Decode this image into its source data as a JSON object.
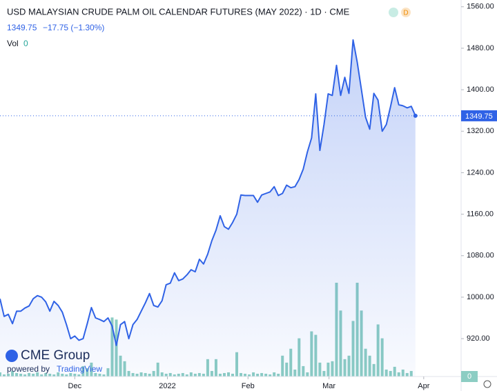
{
  "chart_data": {
    "type": "area",
    "title": "USD MALAYSIAN CRUDE PALM OIL CALENDAR FUTURES (MAY 2022) · 1D · CME",
    "change": "−17.75 (−1.30%)",
    "volume_label": "Vol",
    "badge": "D",
    "branding": {
      "logo": "CME Group",
      "powered_by": "powered by",
      "provider": "TradingView"
    },
    "color": "#2f62e6",
    "volume_color": "#8ccdc3",
    "grid": false,
    "values": [
      997,
      963,
      967,
      949,
      973,
      973,
      979,
      983,
      997,
      1003,
      1000,
      991,
      973,
      992,
      984,
      971,
      947,
      920,
      925,
      917,
      920,
      949,
      980,
      960,
      957,
      953,
      960,
      944,
      907,
      947,
      953,
      920,
      947,
      957,
      973,
      989,
      1007,
      984,
      981,
      993,
      1024,
      1027,
      1047,
      1032,
      1035,
      1043,
      1053,
      1049,
      1073,
      1064,
      1083,
      1109,
      1129,
      1157,
      1136,
      1131,
      1144,
      1160,
      1197,
      1196,
      1196,
      1196,
      1183,
      1197,
      1200,
      1203,
      1213,
      1196,
      1200,
      1216,
      1211,
      1213,
      1227,
      1247,
      1280,
      1307,
      1392,
      1283,
      1333,
      1392,
      1389,
      1447,
      1389,
      1424,
      1393,
      1496,
      1453,
      1400,
      1347,
      1324,
      1393,
      1380,
      1320,
      1333,
      1367,
      1404,
      1371,
      1369,
      1365,
      1368,
      1349.75
    ],
    "volumes": [
      6,
      3,
      4,
      8,
      5,
      4,
      3,
      5,
      4,
      6,
      3,
      5,
      4,
      3,
      6,
      4,
      3,
      5,
      4,
      3,
      15,
      12,
      20,
      5,
      4,
      3,
      12,
      85,
      82,
      30,
      22,
      8,
      5,
      4,
      6,
      5,
      4,
      8,
      20,
      6,
      4,
      5,
      3,
      4,
      5,
      3,
      6,
      4,
      5,
      4,
      25,
      8,
      25,
      4,
      5,
      6,
      4,
      35,
      5,
      4,
      3,
      6,
      4,
      5,
      4,
      3,
      6,
      4,
      30,
      20,
      40,
      10,
      55,
      15,
      6,
      65,
      60,
      20,
      8,
      20,
      22,
      135,
      95,
      25,
      30,
      80,
      135,
      95,
      40,
      30,
      18,
      75,
      55,
      10,
      8,
      14,
      6,
      10,
      5,
      8,
      0
    ],
    "xlim": [
      0,
      111
    ],
    "xticks": [
      {
        "value": 18,
        "label": "Dec"
      },
      {
        "value": 40.3,
        "label": "2022"
      },
      {
        "value": 59.7,
        "label": "Feb"
      },
      {
        "value": 79.2,
        "label": "Mar"
      },
      {
        "value": 102,
        "label": "Apr"
      }
    ],
    "ylim": [
      847,
      1573
    ],
    "yticks": [
      {
        "value": 920,
        "label": "920.00"
      },
      {
        "value": 1000,
        "label": "1000.00"
      },
      {
        "value": 1080,
        "label": "1080.00"
      },
      {
        "value": 1160,
        "label": "1160.00"
      },
      {
        "value": 1240,
        "label": "1240.00"
      },
      {
        "value": 1320,
        "label": "1320.00"
      },
      {
        "value": 1400,
        "label": "1400.00"
      },
      {
        "value": 1480,
        "label": "1480.00"
      },
      {
        "value": 1560,
        "label": "1560.00"
      }
    ]
  }
}
